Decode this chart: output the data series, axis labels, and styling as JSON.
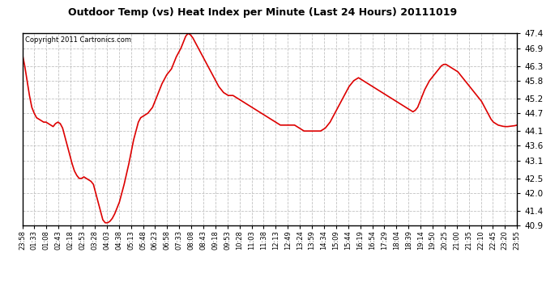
{
  "title": "Outdoor Temp (vs) Heat Index per Minute (Last 24 Hours) 20111019",
  "copyright": "Copyright 2011 Cartronics.com",
  "line_color": "#dd0000",
  "bg_color": "#ffffff",
  "plot_bg_color": "#ffffff",
  "grid_color": "#bbbbbb",
  "ylim": [
    40.9,
    47.4
  ],
  "yticks": [
    40.9,
    41.4,
    42.0,
    42.5,
    43.1,
    43.6,
    44.1,
    44.7,
    45.2,
    45.8,
    46.3,
    46.9,
    47.4
  ],
  "xtick_labels": [
    "23:58",
    "01:33",
    "01:08",
    "02:43",
    "02:18",
    "02:53",
    "03:28",
    "04:03",
    "04:38",
    "05:13",
    "05:48",
    "06:23",
    "06:58",
    "07:33",
    "08:08",
    "08:43",
    "09:18",
    "09:53",
    "10:28",
    "11:03",
    "11:38",
    "12:13",
    "12:49",
    "13:24",
    "13:59",
    "14:34",
    "15:09",
    "15:44",
    "16:19",
    "16:54",
    "17:29",
    "18:04",
    "18:39",
    "19:14",
    "19:50",
    "20:25",
    "21:00",
    "21:35",
    "22:10",
    "22:45",
    "23:20",
    "23:55"
  ],
  "y_values": [
    46.7,
    46.3,
    45.8,
    45.3,
    44.9,
    44.7,
    44.55,
    44.5,
    44.45,
    44.4,
    44.4,
    44.35,
    44.3,
    44.25,
    44.35,
    44.4,
    44.35,
    44.2,
    43.9,
    43.6,
    43.3,
    43.0,
    42.75,
    42.6,
    42.5,
    42.5,
    42.55,
    42.5,
    42.45,
    42.4,
    42.3,
    42.0,
    41.7,
    41.4,
    41.1,
    41.0,
    41.0,
    41.05,
    41.15,
    41.3,
    41.5,
    41.7,
    42.0,
    42.3,
    42.65,
    43.0,
    43.4,
    43.8,
    44.1,
    44.4,
    44.55,
    44.6,
    44.65,
    44.7,
    44.8,
    44.9,
    45.1,
    45.3,
    45.5,
    45.7,
    45.85,
    46.0,
    46.1,
    46.2,
    46.4,
    46.6,
    46.75,
    46.9,
    47.1,
    47.3,
    47.4,
    47.35,
    47.25,
    47.1,
    46.95,
    46.8,
    46.65,
    46.5,
    46.35,
    46.2,
    46.05,
    45.9,
    45.75,
    45.6,
    45.5,
    45.4,
    45.35,
    45.3,
    45.3,
    45.3,
    45.25,
    45.2,
    45.15,
    45.1,
    45.05,
    45.0,
    44.95,
    44.9,
    44.85,
    44.8,
    44.75,
    44.7,
    44.65,
    44.6,
    44.55,
    44.5,
    44.45,
    44.4,
    44.35,
    44.3,
    44.3,
    44.3,
    44.3,
    44.3,
    44.3,
    44.3,
    44.25,
    44.2,
    44.15,
    44.1,
    44.1,
    44.1,
    44.1,
    44.1,
    44.1,
    44.1,
    44.1,
    44.15,
    44.2,
    44.3,
    44.4,
    44.55,
    44.7,
    44.85,
    45.0,
    45.15,
    45.3,
    45.45,
    45.6,
    45.7,
    45.8,
    45.85,
    45.9,
    45.85,
    45.8,
    45.75,
    45.7,
    45.65,
    45.6,
    45.55,
    45.5,
    45.45,
    45.4,
    45.35,
    45.3,
    45.25,
    45.2,
    45.15,
    45.1,
    45.05,
    45.0,
    44.95,
    44.9,
    44.85,
    44.8,
    44.75,
    44.8,
    44.9,
    45.1,
    45.3,
    45.5,
    45.65,
    45.8,
    45.9,
    46.0,
    46.1,
    46.2,
    46.3,
    46.35,
    46.35,
    46.3,
    46.25,
    46.2,
    46.15,
    46.1,
    46.0,
    45.9,
    45.8,
    45.7,
    45.6,
    45.5,
    45.4,
    45.3,
    45.2,
    45.1,
    44.95,
    44.8,
    44.65,
    44.5,
    44.4,
    44.35,
    44.3,
    44.28,
    44.26,
    44.25,
    44.25,
    44.26,
    44.27,
    44.28,
    44.3
  ]
}
